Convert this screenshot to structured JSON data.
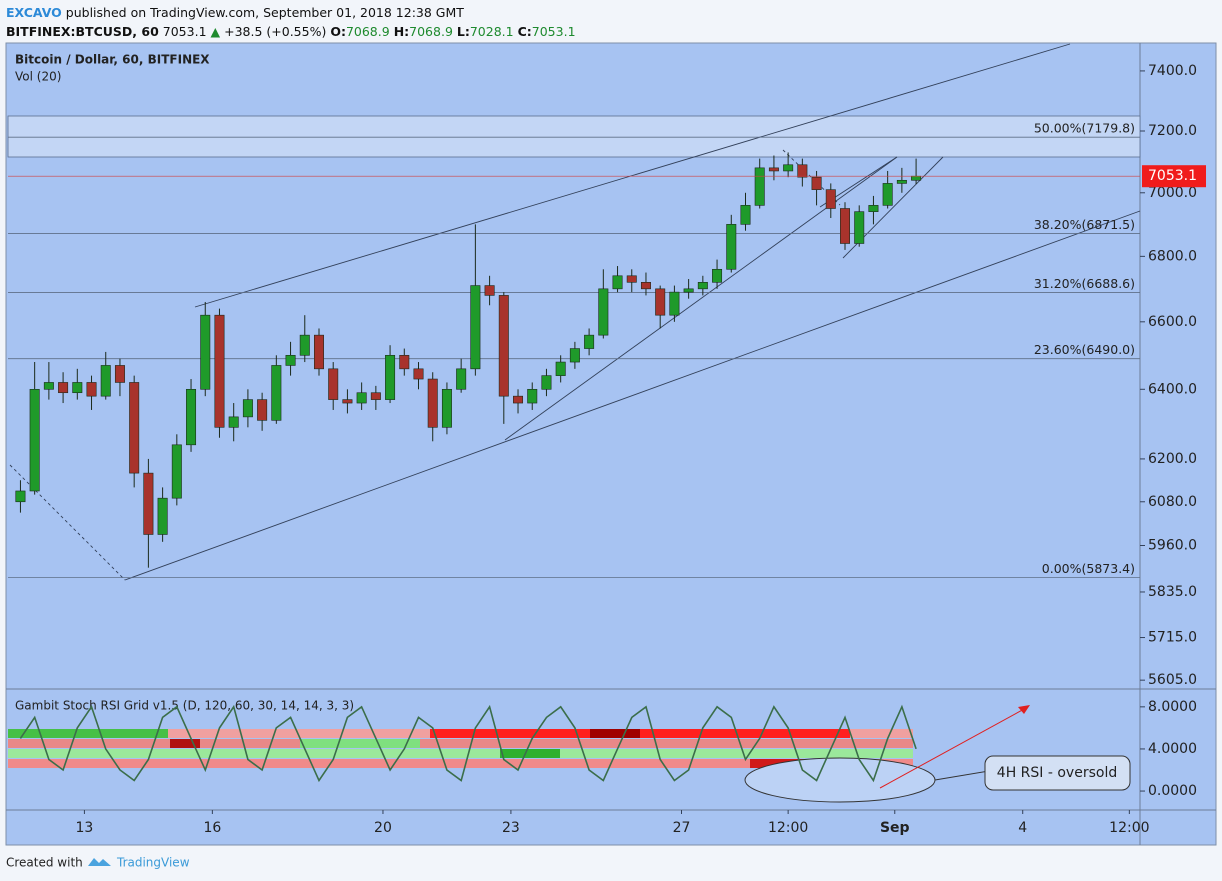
{
  "header": {
    "author": "EXCAVO",
    "published": "published on TradingView.com, September 01, 2018 12:38 GMT",
    "symbol": "BITFINEX:BTCUSD, 60",
    "last": 7053.1,
    "change": "+38.5 (+0.55%)",
    "o_label": "O:",
    "open": 7068.9,
    "h_label": "H:",
    "high": 7068.9,
    "l_label": "L:",
    "low": 7028.1,
    "c_label": "C:",
    "close": 7053.1
  },
  "chart_data": [
    {
      "type": "candlestick",
      "title": "Bitcoin / Dollar, 60, BITFINEX",
      "subtitle": "Vol (20)",
      "x": [
        -40,
        -32,
        -24,
        -16,
        -8,
        0,
        8,
        16,
        24,
        32,
        40,
        48,
        56,
        64,
        72,
        80,
        88,
        96,
        104,
        112,
        120,
        128,
        136,
        144,
        152,
        160,
        168,
        176,
        184,
        192,
        200,
        208,
        216,
        224,
        232,
        240,
        248,
        256,
        264,
        272,
        280,
        288,
        296,
        304,
        312,
        320,
        328,
        336,
        344,
        352,
        360,
        368,
        376,
        384,
        392,
        400,
        408,
        416,
        424,
        432,
        440,
        448,
        456,
        464
      ],
      "open": [
        6080,
        6110,
        6400,
        6420,
        6390,
        6420,
        6380,
        6470,
        6420,
        6160,
        5990,
        6090,
        6240,
        6400,
        6620,
        6290,
        6320,
        6370,
        6310,
        6470,
        6500,
        6560,
        6460,
        6370,
        6360,
        6390,
        6370,
        6500,
        6460,
        6430,
        6290,
        6400,
        6460,
        6710,
        6680,
        6380,
        6360,
        6400,
        6440,
        6480,
        6520,
        6560,
        6700,
        6740,
        6720,
        6700,
        6620,
        6690,
        6700,
        6720,
        6760,
        6900,
        6960,
        7080,
        7070,
        7090,
        7050,
        7010,
        6950,
        6840,
        6940,
        6960,
        7030,
        7040
      ],
      "high": [
        6140,
        6480,
        6480,
        6450,
        6460,
        6440,
        6510,
        6490,
        6440,
        6200,
        6120,
        6270,
        6430,
        6660,
        6640,
        6360,
        6400,
        6390,
        6500,
        6540,
        6620,
        6580,
        6480,
        6400,
        6420,
        6410,
        6530,
        6520,
        6480,
        6450,
        6420,
        6490,
        6900,
        6740,
        6690,
        6400,
        6420,
        6460,
        6500,
        6540,
        6580,
        6760,
        6770,
        6760,
        6750,
        6710,
        6710,
        6730,
        6740,
        6790,
        6930,
        7000,
        7110,
        7120,
        7130,
        7110,
        7070,
        7030,
        6970,
        6960,
        6990,
        7070,
        7080,
        7110
      ],
      "low": [
        6050,
        6100,
        6370,
        6360,
        6370,
        6340,
        6370,
        6380,
        6120,
        5900,
        5970,
        6070,
        6220,
        6380,
        6260,
        6250,
        6290,
        6280,
        6300,
        6440,
        6480,
        6440,
        6340,
        6330,
        6340,
        6340,
        6360,
        6440,
        6400,
        6250,
        6270,
        6390,
        6440,
        6650,
        6300,
        6330,
        6340,
        6380,
        6420,
        6460,
        6500,
        6550,
        6690,
        6690,
        6680,
        6580,
        6600,
        6670,
        6680,
        6700,
        6750,
        6880,
        6950,
        7040,
        7050,
        7020,
        6960,
        6920,
        6820,
        6830,
        6900,
        6950,
        7000,
        7028.1
      ],
      "close": [
        6110,
        6400,
        6420,
        6390,
        6420,
        6380,
        6470,
        6420,
        6160,
        5990,
        6090,
        6240,
        6400,
        6620,
        6290,
        6320,
        6370,
        6310,
        6470,
        6500,
        6560,
        6460,
        6370,
        6360,
        6390,
        6370,
        6500,
        6460,
        6430,
        6290,
        6400,
        6460,
        6710,
        6680,
        6380,
        6360,
        6400,
        6440,
        6480,
        6520,
        6560,
        6700,
        6740,
        6720,
        6700,
        6620,
        6690,
        6700,
        6720,
        6760,
        6900,
        6960,
        7080,
        7070,
        7090,
        7050,
        7010,
        6950,
        6840,
        6940,
        6960,
        7030,
        7040,
        7053.1
      ],
      "up_color": "#1f9a2a",
      "down_color": "#a8332c",
      "xlim": [
        -43,
        594
      ],
      "xticks": [
        {
          "value": 0,
          "label": "13"
        },
        {
          "value": 72,
          "label": "16"
        },
        {
          "value": 168,
          "label": "20"
        },
        {
          "value": 240,
          "label": "23"
        },
        {
          "value": 336,
          "label": "27"
        },
        {
          "value": 396,
          "label": "12:00"
        },
        {
          "value": 456,
          "label": "Sep"
        },
        {
          "value": 528,
          "label": "4"
        },
        {
          "value": 588,
          "label": "12:00"
        }
      ],
      "ylim": [
        5585,
        7488
      ],
      "log_scale": true,
      "yticks": [
        {
          "value": 7400,
          "label": "7400.0"
        },
        {
          "value": 7200,
          "label": "7200.0"
        },
        {
          "value": 7000,
          "label": "7000.0"
        },
        {
          "value": 6800,
          "label": "6800.0"
        },
        {
          "value": 6600,
          "label": "6600.0"
        },
        {
          "value": 6400,
          "label": "6400.0"
        },
        {
          "value": 6200,
          "label": "6200.0"
        },
        {
          "value": 6080,
          "label": "6080.0"
        },
        {
          "value": 5960,
          "label": "5960.0"
        },
        {
          "value": 5835,
          "label": "5835.0"
        },
        {
          "value": 5715,
          "label": "5715.0"
        },
        {
          "value": 5605,
          "label": "5605.0"
        }
      ],
      "fib_levels": [
        {
          "value": 7179.8,
          "label": "50.00%(7179.8)"
        },
        {
          "value": 6871.5,
          "label": "38.20%(6871.5)"
        },
        {
          "value": 6688.6,
          "label": "31.20%(6688.6)"
        },
        {
          "value": 6490.0,
          "label": "23.60%(6490.0)"
        },
        {
          "value": 5873.4,
          "label": "0.00%(5873.4)"
        }
      ]
    },
    {
      "type": "line",
      "title": "Gambit Stoch RSI Grid v1.5 (D, 120, 60, 30, 14, 14, 3, 3)",
      "color": "#3b6e4a",
      "x": [
        -40,
        -32,
        -24,
        -16,
        -8,
        0,
        8,
        16,
        24,
        32,
        40,
        48,
        56,
        64,
        72,
        80,
        88,
        96,
        104,
        112,
        120,
        128,
        136,
        144,
        152,
        160,
        168,
        176,
        184,
        192,
        200,
        208,
        216,
        224,
        232,
        240,
        248,
        256,
        264,
        272,
        280,
        288,
        296,
        304,
        312,
        320,
        328,
        336,
        344,
        352,
        360,
        368,
        376,
        384,
        392,
        400,
        408,
        416,
        424,
        432,
        440,
        448,
        456,
        464
      ],
      "values": [
        5,
        7,
        3,
        2,
        6,
        8,
        4,
        2,
        1,
        3,
        7,
        8,
        5,
        2,
        6,
        8,
        3,
        2,
        6,
        7,
        4,
        1,
        3,
        7,
        8,
        5,
        2,
        4,
        7,
        6,
        2,
        1,
        6,
        8,
        3,
        2,
        5,
        7,
        8,
        6,
        2,
        1,
        4,
        7,
        8,
        3,
        1,
        2,
        6,
        8,
        7,
        3,
        5,
        8,
        6,
        2,
        1,
        4,
        7,
        3,
        1,
        5,
        8,
        4
      ],
      "ylim": [
        -1.8,
        9.6
      ],
      "yticks": [
        {
          "value": 8,
          "label": "8.0000"
        },
        {
          "value": 4,
          "label": "4.0000"
        },
        {
          "value": 0,
          "label": "0.0000"
        }
      ],
      "annotation": "4H RSI - oversold"
    }
  ],
  "footer": {
    "created": "Created with",
    "brand": "TradingView"
  }
}
